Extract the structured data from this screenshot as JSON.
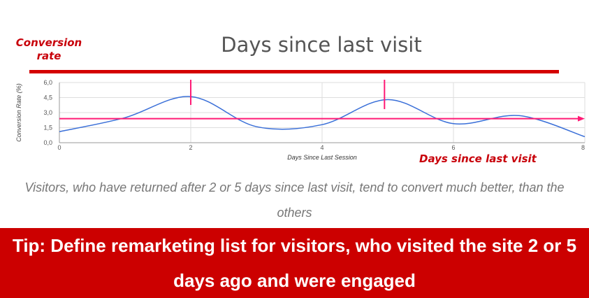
{
  "annotations": {
    "y_name": "Conversion rate",
    "x_name": "Days since last visit",
    "title": "Days since last visit"
  },
  "caption": "Visitors, who have returned after 2 or 5 days since last visit, tend to convert much better, than the others",
  "tip": "Tip: Define remarketing list for visitors, who visited the site 2 or 5 days ago and were engaged",
  "colors": {
    "accent_red": "#cc0000",
    "series": "#3a6fd8",
    "highlight": "#ff1a75"
  },
  "chart_data": {
    "type": "line",
    "xlabel": "Days Since Last Session",
    "ylabel": "Conversion Rate (%)",
    "xlim": [
      0,
      8
    ],
    "ylim": [
      0,
      6
    ],
    "xticks": [
      "0",
      "2",
      "4",
      "6",
      "8"
    ],
    "yticks": [
      "0,0",
      "1,5",
      "3,0",
      "4,5",
      "6,0"
    ],
    "grid": true,
    "x": [
      0,
      1,
      2,
      3,
      4,
      5,
      6,
      7,
      8
    ],
    "values": [
      1.1,
      2.5,
      4.6,
      1.6,
      1.8,
      4.3,
      1.9,
      2.7,
      0.6
    ],
    "average_line": 2.4,
    "highlight_x": [
      2,
      5
    ]
  }
}
